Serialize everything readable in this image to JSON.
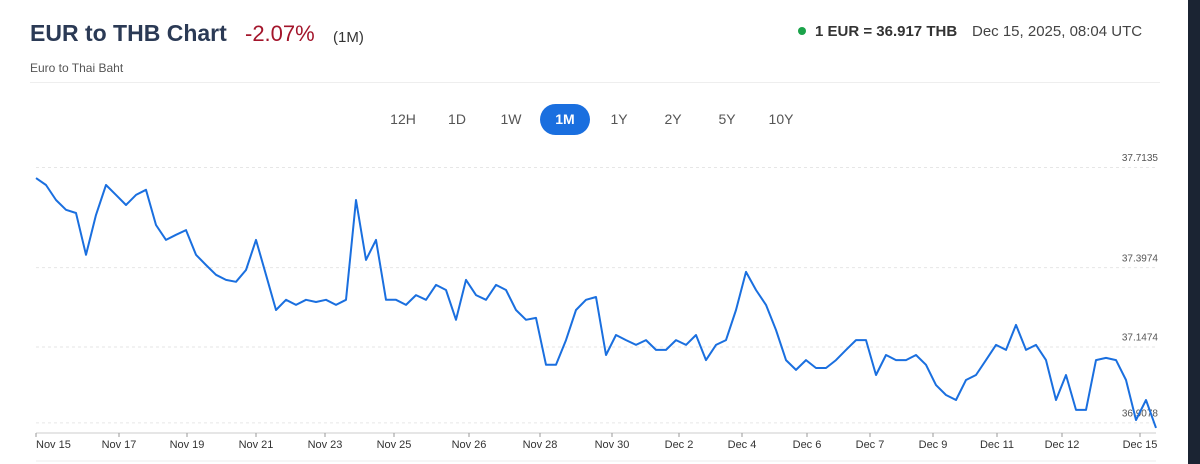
{
  "header": {
    "title": "EUR to THB Chart",
    "change": "-2.07%",
    "period": "(1M)",
    "subtitle": "Euro to Thai Baht",
    "rate": "1 EUR = 36.917 THB",
    "timestamp": "Dec 15, 2025, 08:04 UTC"
  },
  "ranges": {
    "options": [
      "12H",
      "1D",
      "1W",
      "1M",
      "1Y",
      "2Y",
      "5Y",
      "10Y"
    ],
    "active": "1M"
  },
  "chart_data": {
    "type": "line",
    "color": "#1a6fdf",
    "grid": true,
    "x": [
      0,
      1,
      2,
      3,
      4,
      5,
      6,
      7,
      8,
      9,
      10,
      11,
      12,
      13,
      14,
      15,
      16,
      17,
      18,
      19,
      20,
      21,
      22,
      23,
      24,
      25,
      26,
      27,
      28,
      29,
      30,
      31,
      32,
      33,
      34,
      35,
      36,
      37,
      38,
      39,
      40,
      41,
      42,
      43,
      44,
      45,
      46,
      47,
      48,
      49,
      50,
      51,
      52,
      53,
      54,
      55,
      56,
      57,
      58,
      59,
      60,
      61,
      62,
      63,
      64,
      65,
      66,
      67,
      68,
      69,
      70,
      71,
      72,
      73,
      74,
      75,
      76,
      77,
      78,
      79,
      80,
      81,
      82,
      83,
      84,
      85,
      86,
      87,
      88,
      89,
      90,
      91,
      92,
      93,
      94,
      95,
      96,
      97,
      98,
      99,
      100,
      101,
      102,
      103,
      104,
      105,
      106,
      107,
      108,
      109,
      110,
      111,
      112
    ],
    "values": [
      37.68,
      37.658,
      37.611,
      37.58,
      37.57,
      37.438,
      37.564,
      37.658,
      37.627,
      37.595,
      37.627,
      37.643,
      37.532,
      37.485,
      37.501,
      37.516,
      37.438,
      37.406,
      37.375,
      37.359,
      37.353,
      37.39,
      37.485,
      37.375,
      37.264,
      37.296,
      37.28,
      37.296,
      37.289,
      37.296,
      37.28,
      37.296,
      37.611,
      37.422,
      37.485,
      37.296,
      37.296,
      37.28,
      37.311,
      37.296,
      37.343,
      37.327,
      37.233,
      37.359,
      37.311,
      37.296,
      37.343,
      37.327,
      37.264,
      37.233,
      37.239,
      37.091,
      37.091,
      37.169,
      37.264,
      37.296,
      37.305,
      37.122,
      37.185,
      37.169,
      37.154,
      37.169,
      37.138,
      37.138,
      37.169,
      37.154,
      37.185,
      37.106,
      37.154,
      37.169,
      37.264,
      37.384,
      37.327,
      37.28,
      37.201,
      37.106,
      37.075,
      37.106,
      37.081,
      37.081,
      37.106,
      37.138,
      37.169,
      37.169,
      37.059,
      37.122,
      37.106,
      37.106,
      37.122,
      37.091,
      37.027,
      36.996,
      36.98,
      37.043,
      37.059,
      37.106,
      37.154,
      37.138,
      37.217,
      37.138,
      37.154,
      37.106,
      36.98,
      37.059,
      36.949,
      36.949,
      37.106,
      37.113,
      37.106,
      37.043,
      36.917,
      36.98,
      36.892
    ],
    "xlim": [
      0,
      112
    ],
    "xticks": [
      {
        "value": 0,
        "label": "Nov 15"
      },
      {
        "value": 8.3,
        "label": "Nov 17"
      },
      {
        "value": 15.1,
        "label": "Nov 19"
      },
      {
        "value": 22,
        "label": "Nov 21"
      },
      {
        "value": 28.9,
        "label": "Nov 23"
      },
      {
        "value": 35.8,
        "label": "Nov 25"
      },
      {
        "value": 43.3,
        "label": "Nov 26"
      },
      {
        "value": 50.4,
        "label": "Nov 28"
      },
      {
        "value": 57.6,
        "label": "Nov 30"
      },
      {
        "value": 64.3,
        "label": "Dec 2"
      },
      {
        "value": 70.6,
        "label": "Dec 4"
      },
      {
        "value": 77.1,
        "label": "Dec 6"
      },
      {
        "value": 83.4,
        "label": "Dec 7"
      },
      {
        "value": 89.7,
        "label": "Dec 9"
      },
      {
        "value": 96.1,
        "label": "Dec 11"
      },
      {
        "value": 102.6,
        "label": "Dec 12"
      },
      {
        "value": 110.4,
        "label": "Dec 15"
      }
    ],
    "ylim": [
      36.876,
      37.737
    ],
    "yticks": [
      36.9078,
      37.1474,
      37.3974,
      37.7135
    ]
  }
}
